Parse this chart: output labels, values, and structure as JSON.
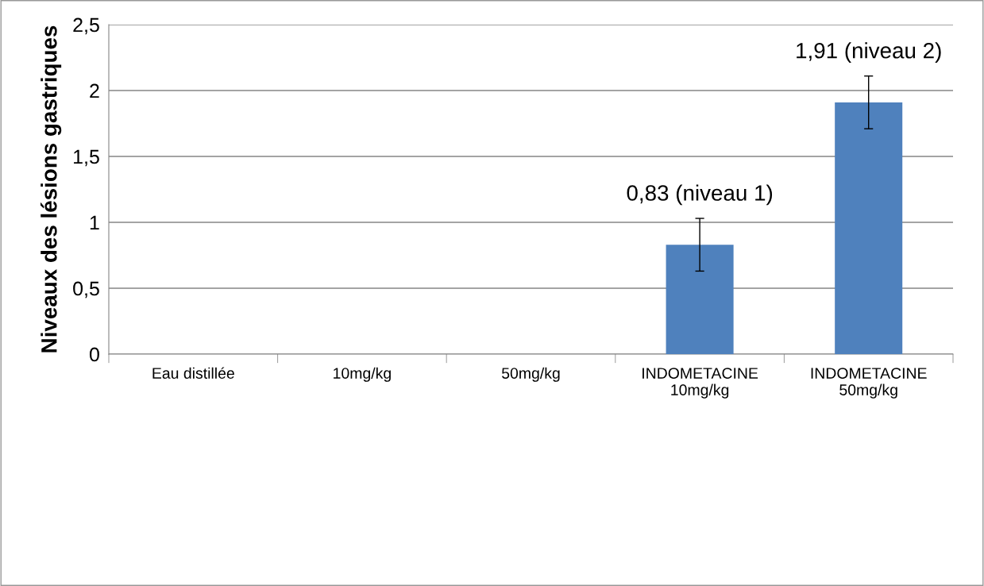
{
  "chart_data": {
    "type": "bar",
    "ylabel": "Niveaux des lésions gastriques",
    "categories": [
      "Eau distillée",
      "10mg/kg",
      "50mg/kg",
      "INDOMETACINE\n10mg/kg",
      "INDOMETACINE\n50mg/kg"
    ],
    "values": [
      0,
      0,
      0,
      0.83,
      1.91
    ],
    "errors": [
      null,
      null,
      null,
      0.2,
      0.2
    ],
    "value_labels": [
      null,
      null,
      null,
      "0,83 (niveau 1)",
      "1,91 (niveau 2)"
    ],
    "color": "#4f81bd",
    "ylim": [
      0,
      2.5
    ],
    "yticks": [
      0,
      {
        "value": 0.5,
        "label": "0,5"
      },
      1,
      {
        "value": 1.5,
        "label": "1,5"
      },
      2,
      {
        "value": 2.5,
        "label": "2,5"
      }
    ],
    "grid": "y",
    "legend": false
  }
}
